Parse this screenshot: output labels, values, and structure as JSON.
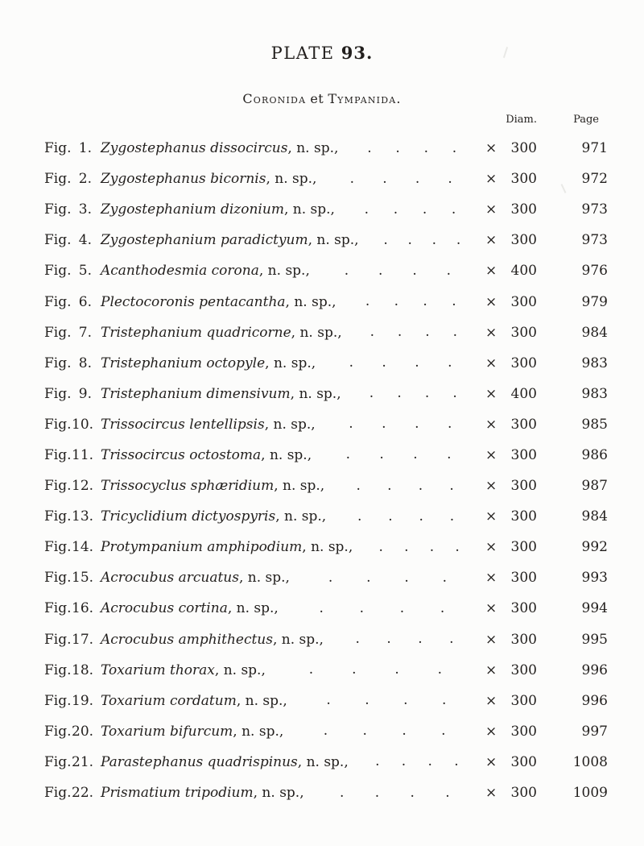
{
  "page": {
    "title_word": "PLATE",
    "title_number": "93.",
    "subtitle": {
      "part1": "Coronida",
      "conj": "et",
      "part2": "Tympanida."
    }
  },
  "table": {
    "headers": {
      "diam": "Diam.",
      "page": "Page"
    },
    "fig_label": "Fig.",
    "suffix": ", n. sp.,",
    "mult_sign": "×"
  },
  "figures": [
    {
      "num": "1.",
      "name": "Zygostephanus dissocircus",
      "diam": "300",
      "page": "971"
    },
    {
      "num": "2.",
      "name": "Zygostephanus bicornis",
      "diam": "300",
      "page": "972"
    },
    {
      "num": "3.",
      "name": "Zygostephanium dizonium",
      "diam": "300",
      "page": "973"
    },
    {
      "num": "4.",
      "name": "Zygostephanium paradictyum",
      "diam": "300",
      "page": "973"
    },
    {
      "num": "5.",
      "name": "Acanthodesmia corona",
      "diam": "400",
      "page": "976"
    },
    {
      "num": "6.",
      "name": "Plectocoronis pentacantha",
      "diam": "300",
      "page": "979"
    },
    {
      "num": "7.",
      "name": "Tristephanium quadricorne",
      "diam": "300",
      "page": "984"
    },
    {
      "num": "8.",
      "name": "Tristephanium octopyle",
      "diam": "300",
      "page": "983"
    },
    {
      "num": "9.",
      "name": "Tristephanium dimensivum",
      "diam": "400",
      "page": "983"
    },
    {
      "num": "10.",
      "name": "Trissocircus lentellipsis",
      "diam": "300",
      "page": "985"
    },
    {
      "num": "11.",
      "name": "Trissocircus octostoma",
      "diam": "300",
      "page": "986"
    },
    {
      "num": "12.",
      "name": "Trissocyclus sphæridium",
      "diam": "300",
      "page": "987"
    },
    {
      "num": "13.",
      "name": "Tricyclidium dictyospyris",
      "diam": "300",
      "page": "984"
    },
    {
      "num": "14.",
      "name": "Protympanium amphipodium",
      "diam": "300",
      "page": "992"
    },
    {
      "num": "15.",
      "name": "Acrocubus arcuatus",
      "diam": "300",
      "page": "993"
    },
    {
      "num": "16.",
      "name": "Acrocubus cortina",
      "diam": "300",
      "page": "994"
    },
    {
      "num": "17.",
      "name": "Acrocubus amphithectus",
      "diam": "300",
      "page": "995"
    },
    {
      "num": "18.",
      "name": "Toxarium thorax",
      "diam": "300",
      "page": "996"
    },
    {
      "num": "19.",
      "name": "Toxarium cordatum",
      "diam": "300",
      "page": "996"
    },
    {
      "num": "20.",
      "name": "Toxarium bifurcum",
      "diam": "300",
      "page": "997"
    },
    {
      "num": "21.",
      "name": "Parastephanus quadrispinus",
      "diam": "300",
      "page": "1008"
    },
    {
      "num": "22.",
      "name": "Prismatium tripodium",
      "diam": "300",
      "page": "1009"
    }
  ]
}
